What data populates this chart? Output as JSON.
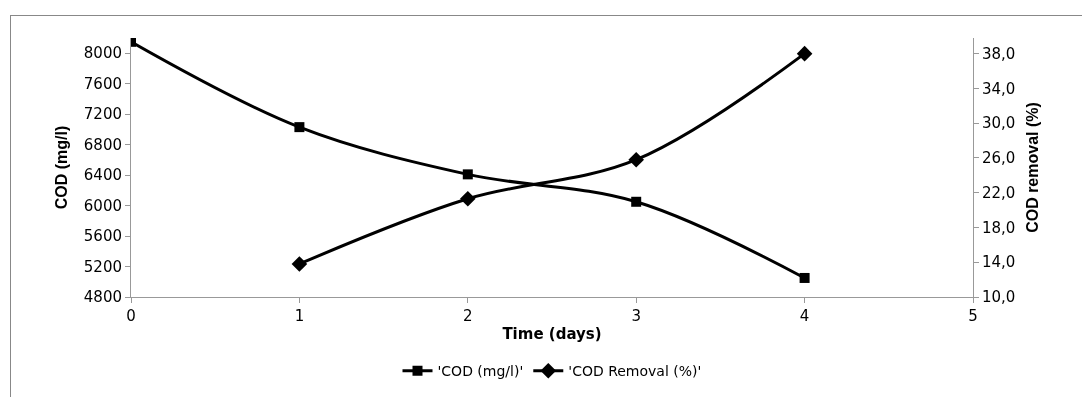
{
  "chart_data": {
    "type": "line",
    "xlabel": "Time (days)",
    "ylabel": "COD (mg/l)",
    "y2label": "COD removal (%)",
    "xlim": [
      0,
      5
    ],
    "xticks": [
      0,
      1,
      2,
      3,
      4,
      5
    ],
    "ylim": [
      4800,
      8200
    ],
    "yticks": [
      4800,
      5200,
      5600,
      6000,
      6400,
      6800,
      7200,
      7600,
      8000
    ],
    "y2lim": [
      10,
      39.8
    ],
    "y2ticks": [
      {
        "value": 10,
        "label": "10,0"
      },
      {
        "value": 14,
        "label": "14,0"
      },
      {
        "value": 18,
        "label": "18,0"
      },
      {
        "value": 22,
        "label": "22,0"
      },
      {
        "value": 26,
        "label": "26,0"
      },
      {
        "value": 30,
        "label": "30,0"
      },
      {
        "value": 34,
        "label": "34,0"
      },
      {
        "value": 38,
        "label": "38,0"
      }
    ],
    "grid": false,
    "legend": "bottom",
    "line_style": "solid",
    "series": [
      {
        "name": "'COD (mg/l)'",
        "color": "#000000",
        "marker": "square",
        "x": [
          0,
          1,
          2,
          3,
          4
        ],
        "values": [
          8150,
          7030,
          6410,
          6050,
          5050
        ]
      },
      {
        "name": "'COD Removal (%)'",
        "color": "#000000",
        "marker": "diamond",
        "axis": "y2",
        "x": [
          1,
          2,
          3,
          4
        ],
        "values": [
          13.8,
          21.3,
          25.8,
          38.0
        ]
      }
    ]
  }
}
